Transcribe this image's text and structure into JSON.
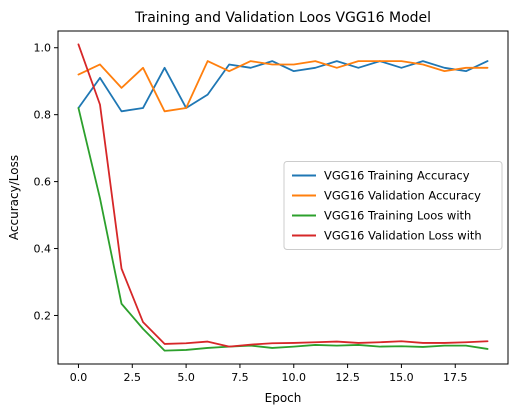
{
  "chart_data": {
    "type": "line",
    "title": "Training and Validation Loos VGG16 Model",
    "xlabel": "Epoch",
    "ylabel": "Accuracy/Loss",
    "x": [
      0,
      1,
      2,
      3,
      4,
      5,
      6,
      7,
      8,
      9,
      10,
      11,
      12,
      13,
      14,
      15,
      16,
      17,
      18,
      19
    ],
    "xlim": [
      -0.95,
      19.95
    ],
    "ylim": [
      0.055,
      1.05
    ],
    "xticks": [
      0,
      2.5,
      5,
      7.5,
      10,
      12.5,
      15,
      17.5
    ],
    "xtick_labels": [
      "0.0",
      "2.5",
      "5.0",
      "7.5",
      "10.0",
      "12.5",
      "15.0",
      "17.5"
    ],
    "yticks": [
      0.2,
      0.4,
      0.6,
      0.8,
      1.0
    ],
    "ytick_labels": [
      "0.2",
      "0.4",
      "0.6",
      "0.8",
      "1.0"
    ],
    "grid": false,
    "legend_position": "center-right",
    "series": [
      {
        "name": "VGG16 Training Accuracy",
        "color": "#1f77b4",
        "values": [
          0.82,
          0.91,
          0.81,
          0.82,
          0.94,
          0.82,
          0.86,
          0.95,
          0.94,
          0.96,
          0.93,
          0.94,
          0.96,
          0.94,
          0.96,
          0.94,
          0.96,
          0.94,
          0.93,
          0.96
        ]
      },
      {
        "name": "VGG16 Validation Accuracy",
        "color": "#ff7f0e",
        "values": [
          0.92,
          0.95,
          0.88,
          0.94,
          0.81,
          0.82,
          0.96,
          0.93,
          0.96,
          0.95,
          0.95,
          0.96,
          0.94,
          0.96,
          0.96,
          0.96,
          0.95,
          0.93,
          0.94,
          0.94
        ]
      },
      {
        "name": "VGG16 Training Loos with",
        "color": "#2ca02c",
        "values": [
          0.82,
          0.55,
          0.235,
          0.16,
          0.095,
          0.097,
          0.103,
          0.107,
          0.11,
          0.103,
          0.107,
          0.112,
          0.11,
          0.112,
          0.107,
          0.108,
          0.106,
          0.11,
          0.11,
          0.1
        ]
      },
      {
        "name": "VGG16 Validation Loss with",
        "color": "#d62728",
        "values": [
          1.01,
          0.83,
          0.34,
          0.18,
          0.115,
          0.117,
          0.122,
          0.107,
          0.113,
          0.117,
          0.118,
          0.12,
          0.122,
          0.118,
          0.12,
          0.123,
          0.118,
          0.118,
          0.12,
          0.123
        ]
      }
    ]
  }
}
